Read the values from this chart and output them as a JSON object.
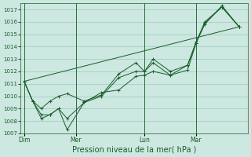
{
  "xlabel": "Pression niveau de la mer( hPa )",
  "bg_color": "#cce8e0",
  "grid_color": "#99ccbb",
  "line_color": "#1a5c2a",
  "ylim": [
    1007,
    1017.5
  ],
  "yticks": [
    1007,
    1008,
    1009,
    1010,
    1011,
    1012,
    1013,
    1014,
    1015,
    1016,
    1017
  ],
  "xtick_labels": [
    "Dim",
    "Mer",
    "Lun",
    "Mar"
  ],
  "xtick_positions": [
    0,
    3,
    7,
    10
  ],
  "vline_positions": [
    0,
    3,
    7,
    10
  ],
  "xlim": [
    -0.2,
    13.0
  ],
  "series": [
    {
      "x": [
        0,
        0.5,
        1.0,
        1.5,
        2.0,
        2.5,
        3.5,
        4.5,
        5.5,
        6.5,
        7.0,
        7.5,
        8.5,
        9.5,
        10.0,
        10.5,
        11.5,
        12.5
      ],
      "y": [
        1011.2,
        1009.6,
        1008.2,
        1008.5,
        1009.0,
        1007.3,
        1009.5,
        1010.3,
        1010.5,
        1011.6,
        1011.7,
        1012.0,
        1011.7,
        1012.1,
        1014.3,
        1016.0,
        1017.2,
        1015.6
      ]
    },
    {
      "x": [
        0,
        0.5,
        1.0,
        1.5,
        2.0,
        2.5,
        3.5,
        4.5,
        5.5,
        6.5,
        7.0,
        7.5,
        8.5,
        9.5,
        10.0,
        10.5,
        11.5,
        12.5
      ],
      "y": [
        1011.2,
        1009.6,
        1008.5,
        1008.5,
        1009.0,
        1008.2,
        1009.5,
        1010.0,
        1011.5,
        1012.0,
        1012.0,
        1012.7,
        1011.7,
        1012.5,
        1014.3,
        1015.8,
        1017.3,
        1015.6
      ]
    },
    {
      "x": [
        0,
        0.5,
        1.0,
        1.5,
        2.0,
        2.5,
        3.5,
        4.5,
        5.5,
        6.5,
        7.0,
        7.5,
        8.5,
        9.5,
        10.0,
        10.5,
        11.5,
        12.5
      ],
      "y": [
        1011.2,
        1009.6,
        1009.0,
        1009.6,
        1010.0,
        1010.2,
        1009.6,
        1010.1,
        1011.8,
        1012.7,
        1012.0,
        1013.0,
        1012.0,
        1012.5,
        1014.4,
        1015.9,
        1017.2,
        1015.6
      ]
    },
    {
      "x": [
        0,
        12.5
      ],
      "y": [
        1011.2,
        1015.6
      ]
    }
  ]
}
